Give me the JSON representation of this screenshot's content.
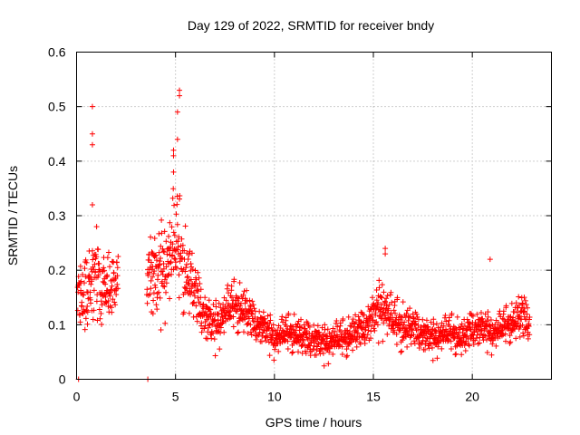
{
  "chart_data": {
    "type": "scatter",
    "title": "Day 129 of 2022, SRMTID for receiver bndy",
    "xlabel": "GPS time / hours",
    "ylabel": "SRMTID / TECUs",
    "xlim": [
      0,
      24
    ],
    "ylim": [
      0,
      0.6
    ],
    "grid": true,
    "marker": "+",
    "color": "#ff0000",
    "x_ticks": [
      0,
      5,
      10,
      15,
      20
    ],
    "x_tick_labels": [
      "0",
      "5",
      "10",
      "15",
      "20"
    ],
    "y_ticks": [
      0,
      0.1,
      0.2,
      0.3,
      0.4,
      0.5,
      0.6
    ],
    "y_tick_labels": [
      "0",
      "0.1",
      "0.2",
      "0.3",
      "0.4",
      "0.5",
      "0.6"
    ],
    "envelope": {
      "description": "Approximate per-hour median level and spread of the scattered points",
      "hours": [
        0.0,
        0.5,
        1.0,
        1.5,
        2.0,
        3.6,
        4.0,
        4.5,
        5.0,
        5.5,
        6.0,
        6.5,
        7.0,
        7.5,
        8.0,
        8.5,
        9.0,
        9.5,
        10.0,
        10.5,
        11.0,
        11.5,
        12.0,
        12.5,
        13.0,
        13.5,
        14.0,
        14.5,
        15.0,
        15.5,
        16.0,
        16.5,
        17.0,
        17.5,
        18.0,
        18.5,
        19.0,
        19.5,
        20.0,
        20.5,
        21.0,
        21.5,
        22.0,
        22.5,
        22.9
      ],
      "median": [
        0.14,
        0.17,
        0.19,
        0.16,
        0.18,
        0.2,
        0.17,
        0.2,
        0.24,
        0.19,
        0.15,
        0.11,
        0.09,
        0.12,
        0.13,
        0.12,
        0.1,
        0.09,
        0.07,
        0.08,
        0.08,
        0.07,
        0.07,
        0.06,
        0.07,
        0.07,
        0.08,
        0.09,
        0.11,
        0.13,
        0.1,
        0.09,
        0.09,
        0.08,
        0.07,
        0.08,
        0.08,
        0.07,
        0.09,
        0.09,
        0.08,
        0.09,
        0.1,
        0.11,
        0.1
      ],
      "spread": [
        0.05,
        0.06,
        0.07,
        0.05,
        0.05,
        0.07,
        0.08,
        0.08,
        0.1,
        0.07,
        0.05,
        0.04,
        0.04,
        0.04,
        0.04,
        0.04,
        0.03,
        0.03,
        0.03,
        0.03,
        0.03,
        0.03,
        0.03,
        0.03,
        0.03,
        0.03,
        0.03,
        0.03,
        0.04,
        0.05,
        0.04,
        0.04,
        0.03,
        0.03,
        0.03,
        0.03,
        0.03,
        0.03,
        0.03,
        0.03,
        0.03,
        0.03,
        0.03,
        0.04,
        0.03
      ]
    },
    "gap": [
      2.1,
      3.55
    ],
    "outliers": [
      {
        "x": 0.8,
        "y": 0.5
      },
      {
        "x": 0.8,
        "y": 0.45
      },
      {
        "x": 0.8,
        "y": 0.43
      },
      {
        "x": 0.8,
        "y": 0.32
      },
      {
        "x": 5.2,
        "y": 0.53
      },
      {
        "x": 5.2,
        "y": 0.52
      },
      {
        "x": 5.1,
        "y": 0.49
      },
      {
        "x": 5.1,
        "y": 0.44
      },
      {
        "x": 4.9,
        "y": 0.42
      },
      {
        "x": 4.9,
        "y": 0.41
      },
      {
        "x": 4.9,
        "y": 0.38
      },
      {
        "x": 15.6,
        "y": 0.24
      },
      {
        "x": 15.6,
        "y": 0.23
      },
      {
        "x": 20.9,
        "y": 0.22
      },
      {
        "x": 0.1,
        "y": 0.0
      },
      {
        "x": 3.6,
        "y": 0.0
      }
    ],
    "points": []
  }
}
